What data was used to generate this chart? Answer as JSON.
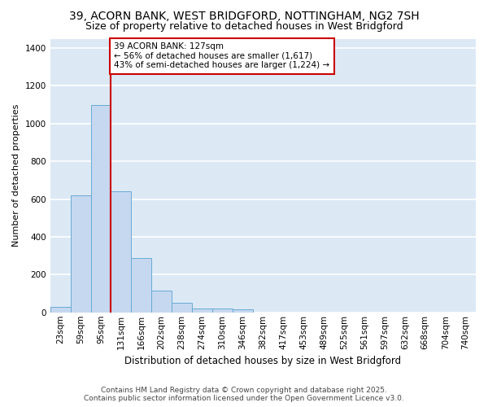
{
  "title_line1": "39, ACORN BANK, WEST BRIDGFORD, NOTTINGHAM, NG2 7SH",
  "title_line2": "Size of property relative to detached houses in West Bridgford",
  "xlabel": "Distribution of detached houses by size in West Bridgford",
  "ylabel": "Number of detached properties",
  "categories": [
    "23sqm",
    "59sqm",
    "95sqm",
    "131sqm",
    "166sqm",
    "202sqm",
    "238sqm",
    "274sqm",
    "310sqm",
    "346sqm",
    "382sqm",
    "417sqm",
    "453sqm",
    "489sqm",
    "525sqm",
    "561sqm",
    "597sqm",
    "632sqm",
    "668sqm",
    "704sqm",
    "740sqm"
  ],
  "bar_heights": [
    28,
    622,
    1100,
    640,
    290,
    115,
    50,
    22,
    22,
    15,
    0,
    0,
    0,
    0,
    0,
    0,
    0,
    0,
    0,
    0,
    0
  ],
  "bar_color": "#c5d8f0",
  "bar_edge_color": "#6aaad4",
  "ylim": [
    0,
    1450
  ],
  "yticks": [
    0,
    200,
    400,
    600,
    800,
    1000,
    1200,
    1400
  ],
  "vline_color": "#cc0000",
  "annotation_text": "39 ACORN BANK: 127sqm\n← 56% of detached houses are smaller (1,617)\n43% of semi-detached houses are larger (1,224) →",
  "annotation_box_color": "#ffffff",
  "annotation_box_edge": "#cc0000",
  "fig_bg_color": "#ffffff",
  "plot_bg_color": "#dce9f5",
  "grid_color": "#ffffff",
  "footer_line1": "Contains HM Land Registry data © Crown copyright and database right 2025.",
  "footer_line2": "Contains public sector information licensed under the Open Government Licence v3.0.",
  "title_fontsize": 10,
  "subtitle_fontsize": 9,
  "tick_fontsize": 7.5,
  "ylabel_fontsize": 8,
  "xlabel_fontsize": 8.5
}
